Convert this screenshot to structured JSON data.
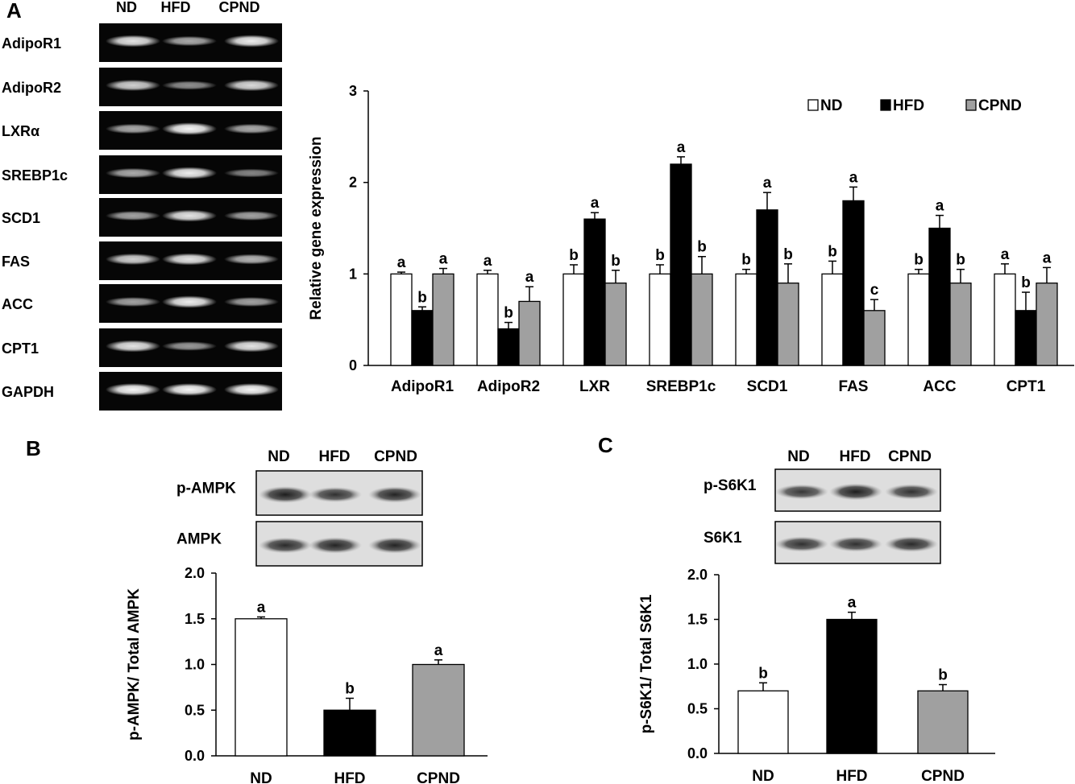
{
  "panels": {
    "a": "A",
    "b": "B",
    "c": "C"
  },
  "gel": {
    "lanes": [
      "ND",
      "HFD",
      "CPND"
    ],
    "rows": [
      {
        "label": "AdipoR1",
        "intensity": [
          0.85,
          0.55,
          0.9
        ]
      },
      {
        "label": "AdipoR2",
        "intensity": [
          0.75,
          0.4,
          0.8
        ]
      },
      {
        "label": "LXRα",
        "intensity": [
          0.55,
          0.95,
          0.55
        ]
      },
      {
        "label": "SREBP1c",
        "intensity": [
          0.55,
          0.9,
          0.35
        ]
      },
      {
        "label": "SCD1",
        "intensity": [
          0.5,
          0.85,
          0.5
        ]
      },
      {
        "label": "FAS",
        "intensity": [
          0.75,
          0.85,
          0.6
        ]
      },
      {
        "label": "ACC",
        "intensity": [
          0.5,
          0.9,
          0.5
        ]
      },
      {
        "label": "CPT1",
        "intensity": [
          0.85,
          0.45,
          0.85
        ]
      },
      {
        "label": "GAPDH",
        "intensity": [
          0.95,
          0.95,
          0.95
        ]
      }
    ]
  },
  "blot_b": {
    "lanes": [
      "ND",
      "HFD",
      "CPND"
    ],
    "rows": [
      {
        "label": "p-AMPK",
        "intensity": [
          0.9,
          0.75,
          0.85
        ]
      },
      {
        "label": "AMPK",
        "intensity": [
          0.8,
          0.85,
          0.85
        ]
      }
    ]
  },
  "blot_c": {
    "lanes": [
      "ND",
      "HFD",
      "CPND"
    ],
    "rows": [
      {
        "label": "p-S6K1",
        "intensity": [
          0.7,
          0.9,
          0.75
        ]
      },
      {
        "label": "S6K1",
        "intensity": [
          0.75,
          0.75,
          0.8
        ]
      }
    ]
  },
  "colors": {
    "ND": "#ffffff",
    "HFD": "#000000",
    "CPND": "#a0a0a0"
  },
  "chart_data": [
    {
      "type": "bar",
      "ylabel": "Relative gene expression",
      "ylim": [
        0,
        3
      ],
      "yticks": [
        "0",
        "1",
        "2",
        "3"
      ],
      "categories": [
        "AdipoR1",
        "AdipoR2",
        "LXR",
        "SREBP1c",
        "SCD1",
        "FAS",
        "ACC",
        "CPT1"
      ],
      "legend": [
        "ND",
        "HFD",
        "CPND"
      ],
      "legend_position": "top-right",
      "series": [
        {
          "name": "ND",
          "values": [
            1.0,
            1.0,
            1.0,
            1.0,
            1.0,
            1.0,
            1.0,
            1.0
          ],
          "errors": [
            0.02,
            0.04,
            0.1,
            0.1,
            0.05,
            0.14,
            0.05,
            0.11
          ],
          "letters": [
            "a",
            "a",
            "b",
            "b",
            "b",
            "b",
            "b",
            "a"
          ]
        },
        {
          "name": "HFD",
          "values": [
            0.6,
            0.4,
            1.6,
            2.2,
            1.7,
            1.8,
            1.5,
            0.6
          ],
          "errors": [
            0.04,
            0.07,
            0.07,
            0.08,
            0.19,
            0.15,
            0.14,
            0.2
          ],
          "letters": [
            "b",
            "b",
            "a",
            "a",
            "a",
            "a",
            "a",
            "b"
          ]
        },
        {
          "name": "CPND",
          "values": [
            1.0,
            0.7,
            0.9,
            1.0,
            0.9,
            0.6,
            0.9,
            0.9
          ],
          "errors": [
            0.06,
            0.16,
            0.14,
            0.19,
            0.21,
            0.12,
            0.15,
            0.17
          ],
          "letters": [
            "a",
            "a",
            "b",
            "b",
            "b",
            "c",
            "b",
            "a"
          ]
        }
      ]
    },
    {
      "type": "bar",
      "ylabel": "p-AMPK/ Total AMPK",
      "ylim": [
        0,
        2
      ],
      "yticks": [
        "0.0",
        "0.5",
        "1.0",
        "1.5",
        "2.0"
      ],
      "categories": [
        "ND",
        "HFD",
        "CPND"
      ],
      "values": [
        1.5,
        0.5,
        1.0
      ],
      "errors": [
        0.02,
        0.13,
        0.05
      ],
      "letters": [
        "a",
        "b",
        "a"
      ]
    },
    {
      "type": "bar",
      "ylabel": "p-S6K1/ Total S6K1",
      "ylim": [
        0,
        2
      ],
      "yticks": [
        "0.0",
        "0.5",
        "1.0",
        "1.5",
        "2.0"
      ],
      "categories": [
        "ND",
        "HFD",
        "CPND"
      ],
      "values": [
        0.7,
        1.5,
        0.7
      ],
      "errors": [
        0.09,
        0.08,
        0.07
      ],
      "letters": [
        "b",
        "a",
        "b"
      ]
    }
  ]
}
